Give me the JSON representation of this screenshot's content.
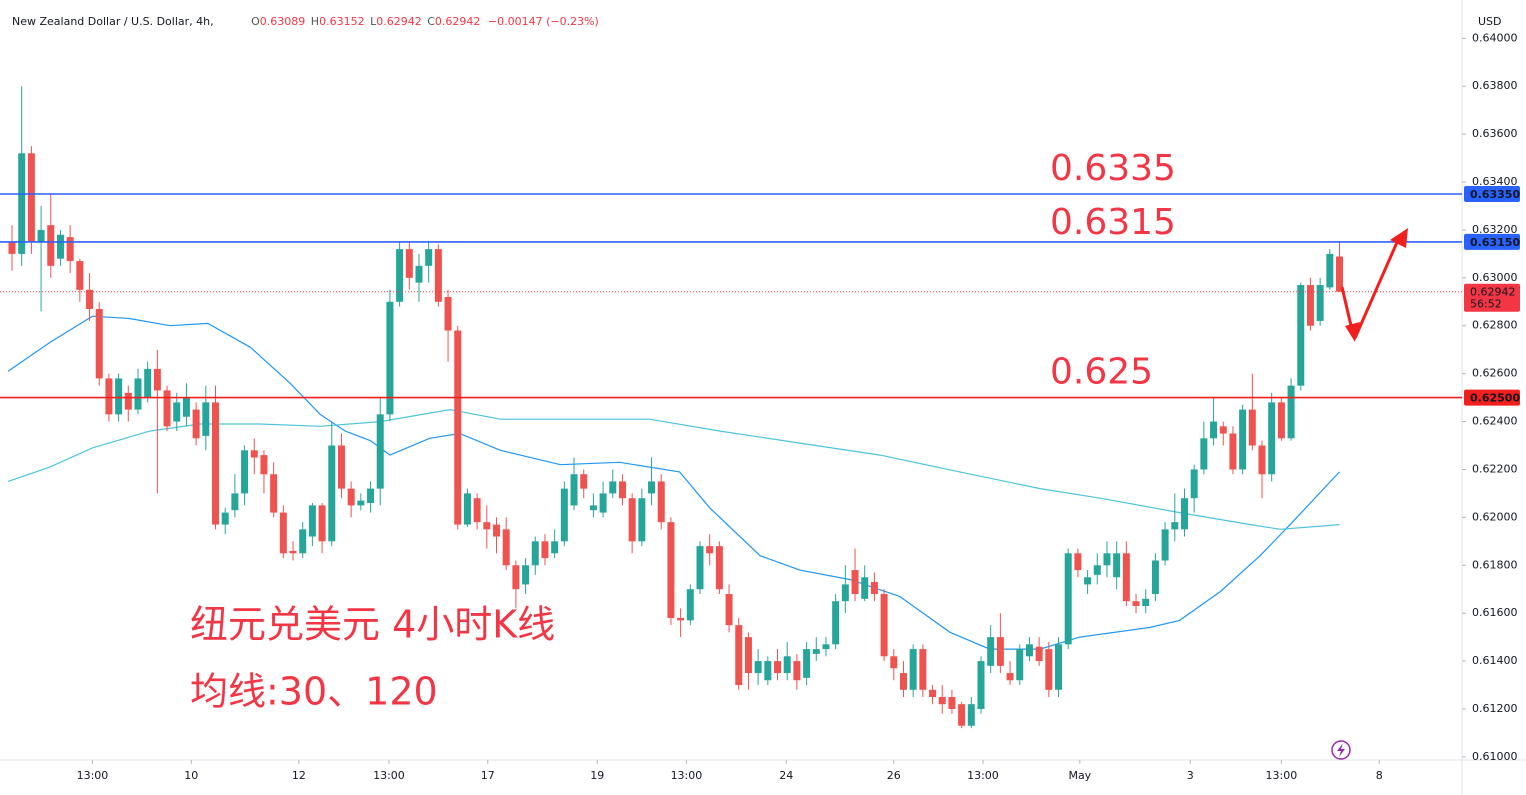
{
  "chart_data": {
    "type": "candlestick",
    "symbol": "New Zealand Dollar / U.S. Dollar, 4h,",
    "ohlc_prefixes": [
      "O",
      "H",
      "L",
      "C"
    ],
    "change": "−0.00147 (−0.23%)",
    "currency": "USD",
    "annotations": [
      "纽元兑美元 4小时K线",
      "均线:30、120"
    ],
    "up_color": "#26a69a",
    "down_color": "#ef5350",
    "x": [
      0,
      1,
      2,
      3,
      4,
      5,
      6,
      7,
      8,
      9,
      10,
      11,
      12,
      13,
      14,
      15,
      16,
      17,
      18,
      19,
      20,
      21,
      22,
      23,
      24,
      25,
      26,
      27,
      28,
      29,
      30,
      31,
      32,
      33,
      34,
      35,
      36,
      37,
      38,
      39,
      40,
      41,
      42,
      43,
      44,
      45,
      46,
      47,
      48,
      49,
      50,
      51,
      52,
      53,
      54,
      55,
      56,
      57,
      58,
      59,
      60,
      61,
      62,
      63,
      64,
      65,
      66,
      67,
      68,
      69,
      70,
      71,
      72,
      73,
      74,
      75,
      76,
      77,
      78,
      79,
      80,
      81,
      82,
      83,
      84,
      85,
      86,
      87,
      88,
      89,
      90,
      91,
      92,
      93,
      94,
      95,
      96,
      97,
      98,
      99,
      100,
      101,
      102,
      103,
      104,
      105,
      106,
      107,
      108,
      109,
      110,
      111,
      112,
      113,
      114,
      115,
      116,
      117,
      118,
      119,
      120,
      121,
      122,
      123,
      124,
      125,
      126,
      127,
      128,
      129,
      130,
      131,
      132,
      133,
      134,
      135,
      136,
      137
    ],
    "open": [
      0.6315,
      0.631,
      0.6352,
      0.6315,
      0.6322,
      0.6308,
      0.6317,
      0.6307,
      0.6295,
      0.6287,
      0.6258,
      0.6243,
      0.6252,
      0.6245,
      0.625,
      0.6262,
      0.6253,
      0.624,
      0.6242,
      0.6245,
      0.6234,
      0.6248,
      0.6197,
      0.6203,
      0.621,
      0.6228,
      0.6226,
      0.6218,
      0.6202,
      0.6186,
      0.6185,
      0.6192,
      0.6205,
      0.619,
      0.623,
      0.6212,
      0.6205,
      0.6206,
      0.6212,
      0.6243,
      0.629,
      0.6312,
      0.6298,
      0.6305,
      0.6312,
      0.6292,
      0.6278,
      0.6197,
      0.6208,
      0.6198,
      0.6197,
      0.6195,
      0.618,
      0.6172,
      0.618,
      0.619,
      0.6185,
      0.619,
      0.6205,
      0.6218,
      0.6203,
      0.6202,
      0.621,
      0.6215,
      0.6208,
      0.619,
      0.621,
      0.6215,
      0.6198,
      0.6158,
      0.6157,
      0.617,
      0.6188,
      0.6188,
      0.6168,
      0.6155,
      0.615,
      0.6135,
      0.6132,
      0.614,
      0.6135,
      0.614,
      0.6133,
      0.6143,
      0.6145,
      0.6147,
      0.6165,
      0.6178,
      0.6166,
      0.6173,
      0.6168,
      0.6142,
      0.6135,
      0.6128,
      0.6145,
      0.6128,
      0.6125,
      0.6125,
      0.6122,
      0.6113,
      0.612,
      0.6138,
      0.615,
      0.6135,
      0.6132,
      0.6142,
      0.6146,
      0.6145,
      0.6128,
      0.6147,
      0.6185,
      0.6172,
      0.6176,
      0.618,
      0.6175,
      0.6185,
      0.6165,
      0.6163,
      0.6168,
      0.6182,
      0.6195,
      0.6195,
      0.6208,
      0.622,
      0.6233,
      0.6238,
      0.6235,
      0.622,
      0.6245,
      0.623,
      0.6218,
      0.6248,
      0.6233,
      0.6255,
      0.6297,
      0.6282,
      0.6296,
      0.63089
    ],
    "high": [
      0.6322,
      0.638,
      0.6355,
      0.633,
      0.6335,
      0.632,
      0.6322,
      0.6308,
      0.6302,
      0.629,
      0.626,
      0.626,
      0.6255,
      0.6262,
      0.6265,
      0.627,
      0.6255,
      0.6252,
      0.6256,
      0.6248,
      0.6255,
      0.6255,
      0.6204,
      0.6218,
      0.623,
      0.6233,
      0.6228,
      0.6223,
      0.6205,
      0.619,
      0.6198,
      0.6206,
      0.6206,
      0.624,
      0.6235,
      0.6215,
      0.621,
      0.6215,
      0.625,
      0.6295,
      0.6315,
      0.6315,
      0.631,
      0.6315,
      0.6314,
      0.6295,
      0.628,
      0.6212,
      0.621,
      0.6205,
      0.62,
      0.62,
      0.6182,
      0.6183,
      0.6192,
      0.6193,
      0.6195,
      0.6215,
      0.6225,
      0.622,
      0.621,
      0.6215,
      0.622,
      0.6218,
      0.621,
      0.6212,
      0.6225,
      0.6218,
      0.62,
      0.6162,
      0.6172,
      0.619,
      0.6193,
      0.619,
      0.6172,
      0.6158,
      0.6152,
      0.6145,
      0.6142,
      0.6145,
      0.6148,
      0.6143,
      0.6148,
      0.615,
      0.615,
      0.6168,
      0.618,
      0.6187,
      0.618,
      0.6177,
      0.617,
      0.6145,
      0.614,
      0.6147,
      0.6147,
      0.613,
      0.613,
      0.6128,
      0.6123,
      0.6125,
      0.6142,
      0.6155,
      0.616,
      0.614,
      0.6147,
      0.615,
      0.615,
      0.6148,
      0.615,
      0.6187,
      0.6187,
      0.6178,
      0.6185,
      0.619,
      0.619,
      0.619,
      0.6168,
      0.617,
      0.6185,
      0.6198,
      0.621,
      0.6212,
      0.6222,
      0.624,
      0.625,
      0.624,
      0.6238,
      0.6247,
      0.626,
      0.6232,
      0.6252,
      0.625,
      0.6258,
      0.6298,
      0.63,
      0.63,
      0.6312,
      0.63152
    ],
    "low": [
      0.6303,
      0.6305,
      0.631,
      0.6286,
      0.63,
      0.6305,
      0.6302,
      0.629,
      0.6282,
      0.6255,
      0.624,
      0.624,
      0.624,
      0.6243,
      0.6248,
      0.621,
      0.6236,
      0.6236,
      0.6238,
      0.623,
      0.6228,
      0.6195,
      0.6193,
      0.62,
      0.6205,
      0.6218,
      0.621,
      0.62,
      0.6183,
      0.6182,
      0.6183,
      0.6188,
      0.6185,
      0.6188,
      0.6208,
      0.62,
      0.6203,
      0.6202,
      0.6205,
      0.624,
      0.6288,
      0.6295,
      0.629,
      0.6298,
      0.6288,
      0.6265,
      0.6195,
      0.6196,
      0.6195,
      0.6187,
      0.6185,
      0.6178,
      0.6162,
      0.6168,
      0.6176,
      0.618,
      0.6183,
      0.6188,
      0.6203,
      0.6208,
      0.62,
      0.62,
      0.6208,
      0.6205,
      0.6185,
      0.6188,
      0.6205,
      0.6195,
      0.6155,
      0.615,
      0.6155,
      0.6168,
      0.618,
      0.6168,
      0.6152,
      0.6128,
      0.6128,
      0.613,
      0.613,
      0.6132,
      0.6132,
      0.6128,
      0.613,
      0.614,
      0.6142,
      0.6145,
      0.616,
      0.6165,
      0.6165,
      0.6165,
      0.614,
      0.6132,
      0.6125,
      0.6125,
      0.6125,
      0.6122,
      0.6118,
      0.6118,
      0.6112,
      0.6112,
      0.6118,
      0.6135,
      0.6135,
      0.613,
      0.613,
      0.614,
      0.6138,
      0.6125,
      0.6125,
      0.6145,
      0.6175,
      0.6168,
      0.6172,
      0.6175,
      0.617,
      0.6163,
      0.616,
      0.616,
      0.6165,
      0.618,
      0.619,
      0.6192,
      0.6202,
      0.6218,
      0.623,
      0.623,
      0.6218,
      0.6218,
      0.6228,
      0.6208,
      0.6215,
      0.6232,
      0.6232,
      0.6253,
      0.6278,
      0.628,
      0.6295,
      0.62942
    ],
    "close": [
      0.631,
      0.6352,
      0.6315,
      0.632,
      0.6305,
      0.6318,
      0.6307,
      0.6295,
      0.6287,
      0.6258,
      0.6243,
      0.6258,
      0.6245,
      0.6258,
      0.6262,
      0.6253,
      0.6238,
      0.6248,
      0.625,
      0.6233,
      0.6248,
      0.6197,
      0.6202,
      0.621,
      0.6228,
      0.6225,
      0.6218,
      0.6202,
      0.6185,
      0.6185,
      0.6195,
      0.6205,
      0.619,
      0.623,
      0.6212,
      0.6205,
      0.6207,
      0.6212,
      0.6243,
      0.629,
      0.6312,
      0.63,
      0.6305,
      0.6312,
      0.629,
      0.6278,
      0.6197,
      0.621,
      0.6198,
      0.6195,
      0.6192,
      0.618,
      0.617,
      0.618,
      0.619,
      0.6183,
      0.619,
      0.6212,
      0.6218,
      0.6212,
      0.6205,
      0.621,
      0.6215,
      0.6208,
      0.619,
      0.6208,
      0.6215,
      0.6198,
      0.6158,
      0.6157,
      0.617,
      0.6188,
      0.6185,
      0.617,
      0.6155,
      0.613,
      0.6135,
      0.614,
      0.614,
      0.6135,
      0.6142,
      0.6132,
      0.6145,
      0.6145,
      0.6147,
      0.6165,
      0.6172,
      0.6168,
      0.6175,
      0.6168,
      0.6142,
      0.6137,
      0.6128,
      0.6145,
      0.6128,
      0.6125,
      0.6122,
      0.612,
      0.6113,
      0.6122,
      0.614,
      0.615,
      0.6138,
      0.6132,
      0.6145,
      0.6147,
      0.614,
      0.6128,
      0.6147,
      0.6185,
      0.6178,
      0.6175,
      0.618,
      0.6185,
      0.6185,
      0.6165,
      0.6163,
      0.6166,
      0.6182,
      0.6195,
      0.6198,
      0.6208,
      0.622,
      0.6233,
      0.624,
      0.6235,
      0.622,
      0.6245,
      0.623,
      0.6218,
      0.6248,
      0.6233,
      0.6255,
      0.6297,
      0.628,
      0.6297,
      0.631,
      0.62942
    ],
    "ma_lines": [
      {
        "color": "#2196f3",
        "x": [
          -0.4,
          3.9,
          8.3,
          12.2,
          16.3,
          20.2,
          24.6,
          28.7,
          31.8,
          34.4,
          37.0,
          39.0,
          43.1,
          46.2,
          50.4,
          56.6,
          62.7,
          68.9,
          72.0,
          77.2,
          81.3,
          86.5,
          91.6,
          96.8,
          100.9,
          106.1,
          110.2,
          117.4,
          120.5,
          124.7,
          128.8,
          131.9,
          137.0
        ],
        "values": [
          0.6261,
          0.6273,
          0.6284,
          0.6283,
          0.628,
          0.6281,
          0.6271,
          0.6256,
          0.6243,
          0.6236,
          0.6232,
          0.6226,
          0.6233,
          0.6235,
          0.6228,
          0.6222,
          0.6223,
          0.6219,
          0.6204,
          0.6184,
          0.6178,
          0.6174,
          0.6167,
          0.6152,
          0.6145,
          0.6145,
          0.615,
          0.6154,
          0.6157,
          0.6169,
          0.6184,
          0.6197,
          0.6219
        ]
      },
      {
        "color": "#4dc4dc",
        "x": [
          -0.4,
          3.9,
          8.3,
          14.2,
          19.4,
          25.6,
          31.8,
          38.0,
          45.2,
          50.4,
          56.6,
          65.8,
          73.1,
          81.3,
          89.6,
          97.8,
          106.1,
          112.3,
          120.5,
          127.8,
          130.9,
          137.0
        ],
        "values": [
          0.6215,
          0.6221,
          0.6229,
          0.6236,
          0.6239,
          0.6239,
          0.6238,
          0.624,
          0.6245,
          0.6241,
          0.6241,
          0.6241,
          0.6236,
          0.6231,
          0.6226,
          0.6219,
          0.6212,
          0.6208,
          0.6202,
          0.6197,
          0.6195,
          0.6197
        ]
      }
    ],
    "levels": [
      {
        "value": 0.6335,
        "tag": "0.63350",
        "color": "#2962ff"
      },
      {
        "value": 0.6315,
        "tag": "0.63150",
        "color": "#2962ff"
      },
      {
        "value": 0.625,
        "tag": "0.62500",
        "color": "#f21f1f"
      }
    ],
    "countdown": "56:52",
    "xlim": [
      -1.24,
      149.64
    ],
    "ylim": [
      0.60987,
      0.6416
    ],
    "xticks": [
      {
        "value": 8.3,
        "label": "13:00"
      },
      {
        "value": 18.5,
        "label": "10"
      },
      {
        "value": 29.6,
        "label": "12"
      },
      {
        "value": 38.9,
        "label": "13:00"
      },
      {
        "value": 49.1,
        "label": "17"
      },
      {
        "value": 60.4,
        "label": "19"
      },
      {
        "value": 69.6,
        "label": "13:00"
      },
      {
        "value": 79.9,
        "label": "24"
      },
      {
        "value": 91.0,
        "label": "26"
      },
      {
        "value": 100.2,
        "label": "13:00"
      },
      {
        "value": 110.2,
        "label": "May"
      },
      {
        "value": 121.6,
        "label": "3"
      },
      {
        "value": 131.0,
        "label": "13:00"
      },
      {
        "value": 141.1,
        "label": "8"
      }
    ],
    "yticks": [
      {
        "value": 0.61,
        "label": "0.61000"
      },
      {
        "value": 0.612,
        "label": "0.61200"
      },
      {
        "value": 0.614,
        "label": "0.61400"
      },
      {
        "value": 0.616,
        "label": "0.61600"
      },
      {
        "value": 0.618,
        "label": "0.61800"
      },
      {
        "value": 0.62,
        "label": "0.62000"
      },
      {
        "value": 0.622,
        "label": "0.62200"
      },
      {
        "value": 0.624,
        "label": "0.62400"
      },
      {
        "value": 0.626,
        "label": "0.62600"
      },
      {
        "value": 0.628,
        "label": "0.62800"
      },
      {
        "value": 0.63,
        "label": "0.63000"
      },
      {
        "value": 0.632,
        "label": "0.63200"
      },
      {
        "value": 0.634,
        "label": "0.63400"
      },
      {
        "value": 0.636,
        "label": "0.63600"
      },
      {
        "value": 0.638,
        "label": "0.63800"
      },
      {
        "value": 0.64,
        "label": "0.64000"
      }
    ]
  }
}
